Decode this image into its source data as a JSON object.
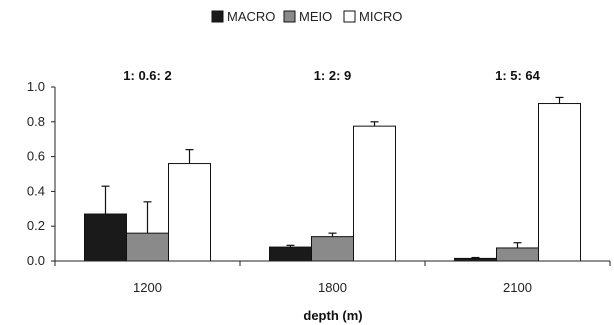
{
  "chart_data": {
    "type": "bar",
    "categories": [
      "1200",
      "1800",
      "2100"
    ],
    "series": [
      {
        "name": "MACRO",
        "values": [
          0.27,
          0.08,
          0.015
        ],
        "errors": [
          0.16,
          0.01,
          0.005
        ],
        "color": "#1a1a1a"
      },
      {
        "name": "MEIO",
        "values": [
          0.16,
          0.14,
          0.075
        ],
        "errors": [
          0.18,
          0.02,
          0.03
        ],
        "color": "#8a8a8a"
      },
      {
        "name": "MICRO",
        "values": [
          0.56,
          0.775,
          0.905
        ],
        "errors": [
          0.08,
          0.025,
          0.035
        ],
        "color": "#ffffff"
      }
    ],
    "annotations": [
      "1: 0.6: 2",
      "1: 2: 9",
      "1: 5: 64"
    ],
    "xlabel": "depth (m)",
    "ylabel": "",
    "ylim": [
      0,
      1.0
    ],
    "yticks": [
      "0.0",
      "0.2",
      "0.4",
      "0.6",
      "0.8",
      "1.0"
    ],
    "grid": false,
    "legend_position": "top-center"
  }
}
